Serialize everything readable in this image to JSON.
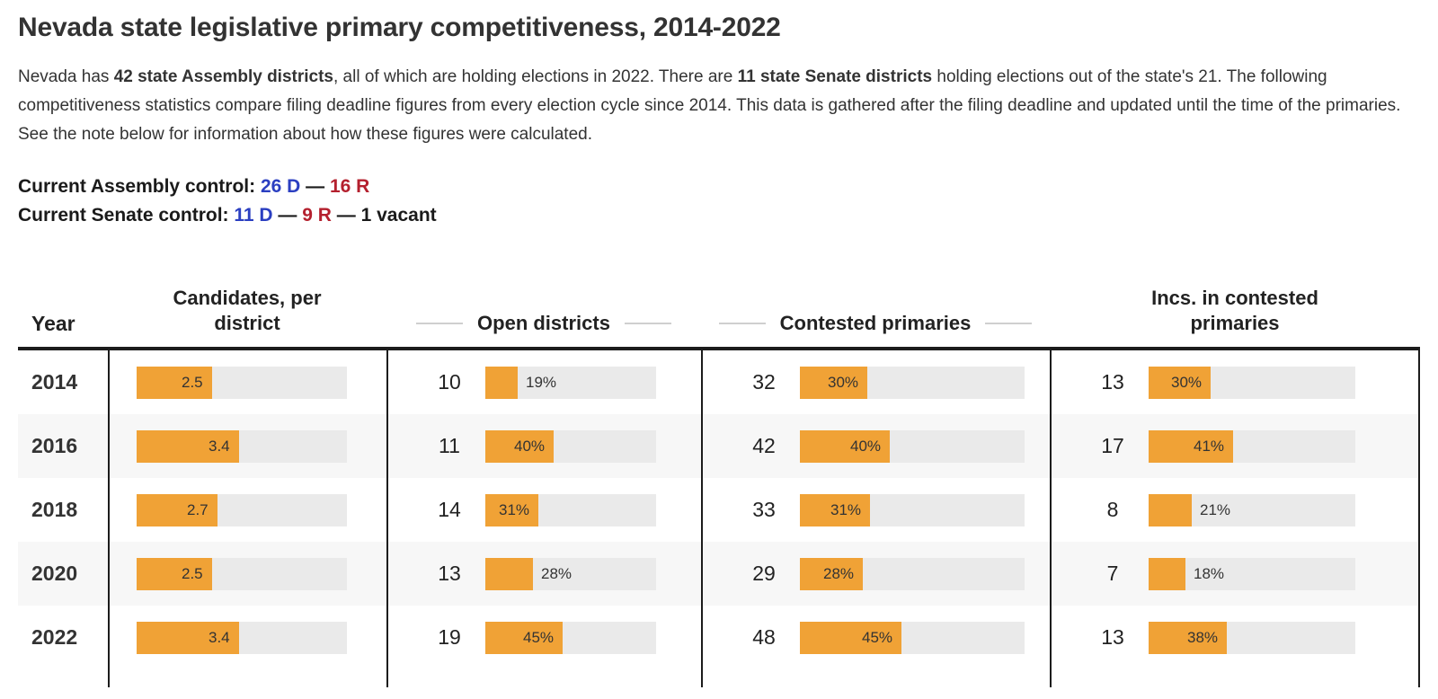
{
  "title": "Nevada state legislative primary competitiveness, 2014-2022",
  "intro": {
    "pre": "Nevada has ",
    "bold1": "42 state Assembly districts",
    "mid1": ", all of which are holding elections in 2022. There are ",
    "bold2": "11 state Senate districts",
    "post": " holding elections out of the state's 21. The following competitiveness statistics compare filing deadline figures from every election cycle since 2014. This data is gathered after the filing deadline and updated until the time of the primaries. See the note below for information about how these figures were calculated."
  },
  "control": {
    "assembly": {
      "label": "Current Assembly control: ",
      "dem": "26 D",
      "sep": " — ",
      "rep": "16 R"
    },
    "senate": {
      "label": "Current Senate control: ",
      "dem": "11 D",
      "sep1": " — ",
      "rep": "9 R",
      "sep2": " — ",
      "vacant": "1 vacant"
    }
  },
  "table_headers": {
    "year": "Year",
    "candidates": "Candidates, per district",
    "open": "Open districts",
    "contested": "Contested primaries",
    "incs": "Incs. in contested primaries"
  },
  "colors": {
    "bar_orange": "#F0A236",
    "track_gray": "#EAEAEA",
    "dem_blue": "#2B3FC1",
    "rep_red": "#B4202E",
    "row_alt": "#F7F7F7",
    "border_dark": "#1c1c1c"
  },
  "chart_data": {
    "type": "table",
    "title": "Nevada state legislative primary competitiveness, 2014-2022",
    "columns": [
      "Year",
      "Candidates, per district",
      "Open districts",
      "Contested primaries",
      "Incs. in contested primaries"
    ],
    "bar_scale": {
      "candidates_bar_full_scale": 7,
      "pct_bar_full_scale": 100
    },
    "rows": [
      {
        "year": "2014",
        "candidates_per_district": 2.5,
        "open_districts": 10,
        "open_districts_pct": 19,
        "contested_primaries": 32,
        "contested_primaries_pct": 30,
        "incs_in_contested": 13,
        "incs_in_contested_pct": 30
      },
      {
        "year": "2016",
        "candidates_per_district": 3.4,
        "open_districts": 11,
        "open_districts_pct": 40,
        "contested_primaries": 42,
        "contested_primaries_pct": 40,
        "incs_in_contested": 17,
        "incs_in_contested_pct": 41
      },
      {
        "year": "2018",
        "candidates_per_district": 2.7,
        "open_districts": 14,
        "open_districts_pct": 31,
        "contested_primaries": 33,
        "contested_primaries_pct": 31,
        "incs_in_contested": 8,
        "incs_in_contested_pct": 21
      },
      {
        "year": "2020",
        "candidates_per_district": 2.5,
        "open_districts": 13,
        "open_districts_pct": 28,
        "contested_primaries": 29,
        "contested_primaries_pct": 28,
        "incs_in_contested": 7,
        "incs_in_contested_pct": 18
      },
      {
        "year": "2022",
        "candidates_per_district": 3.4,
        "open_districts": 19,
        "open_districts_pct": 45,
        "contested_primaries": 48,
        "contested_primaries_pct": 45,
        "incs_in_contested": 13,
        "incs_in_contested_pct": 38
      }
    ]
  }
}
